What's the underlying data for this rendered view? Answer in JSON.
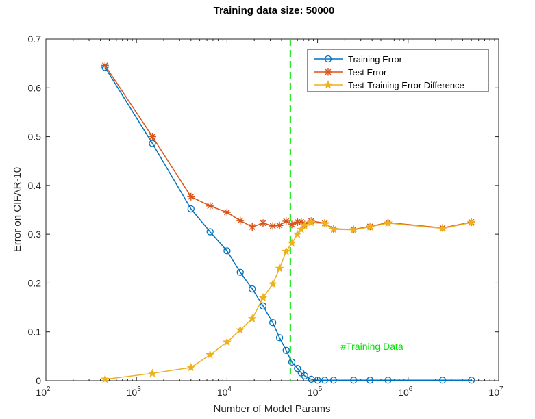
{
  "chart_data": {
    "type": "line",
    "title": "Training data size: 50000",
    "xlabel": "Number of Model Params",
    "ylabel": "Error on CIFAR-10",
    "xscale": "log",
    "xlim": [
      100,
      10000000
    ],
    "ylim": [
      0,
      0.7
    ],
    "x_ticks": [
      {
        "value": 100,
        "base": "10",
        "exp": "2"
      },
      {
        "value": 1000,
        "base": "10",
        "exp": "3"
      },
      {
        "value": 10000,
        "base": "10",
        "exp": "4"
      },
      {
        "value": 100000,
        "base": "10",
        "exp": "5"
      },
      {
        "value": 1000000,
        "base": "10",
        "exp": "6"
      },
      {
        "value": 10000000,
        "base": "10",
        "exp": "7"
      }
    ],
    "y_ticks": [
      {
        "value": 0,
        "label": "0"
      },
      {
        "value": 0.1,
        "label": "0.1"
      },
      {
        "value": 0.2,
        "label": "0.2"
      },
      {
        "value": 0.3,
        "label": "0.3"
      },
      {
        "value": 0.4,
        "label": "0.4"
      },
      {
        "value": 0.5,
        "label": "0.5"
      },
      {
        "value": 0.6,
        "label": "0.6"
      },
      {
        "value": 0.7,
        "label": "0.7"
      }
    ],
    "grid": false,
    "legend_position": "top-right",
    "series": [
      {
        "name": "Training Error",
        "color": "#0072BD",
        "marker": "circle",
        "points": [
          [
            450,
            0.642
          ],
          [
            1500,
            0.486
          ],
          [
            4000,
            0.352
          ],
          [
            6500,
            0.305
          ],
          [
            10000,
            0.266
          ],
          [
            14000,
            0.222
          ],
          [
            19000,
            0.188
          ],
          [
            25000,
            0.153
          ],
          [
            32000,
            0.119
          ],
          [
            38000,
            0.088
          ],
          [
            45000,
            0.062
          ],
          [
            52000,
            0.038
          ],
          [
            60000,
            0.025
          ],
          [
            66000,
            0.016
          ],
          [
            72000,
            0.01
          ],
          [
            85000,
            0.003
          ],
          [
            100000,
            0.001
          ],
          [
            120000,
            0.001
          ],
          [
            150000,
            0.001
          ],
          [
            250000,
            0.001
          ],
          [
            380000,
            0.001
          ],
          [
            600000,
            0.001
          ],
          [
            2400000,
            0.001
          ],
          [
            5000000,
            0.001
          ]
        ]
      },
      {
        "name": "Test Error",
        "color": "#D95319",
        "marker": "asterisk",
        "points": [
          [
            450,
            0.646
          ],
          [
            1500,
            0.5
          ],
          [
            4000,
            0.377
          ],
          [
            6500,
            0.358
          ],
          [
            10000,
            0.345
          ],
          [
            14000,
            0.328
          ],
          [
            19000,
            0.315
          ],
          [
            25000,
            0.323
          ],
          [
            32000,
            0.317
          ],
          [
            38000,
            0.318
          ],
          [
            45000,
            0.327
          ],
          [
            52000,
            0.32
          ],
          [
            60000,
            0.325
          ],
          [
            66000,
            0.325
          ],
          [
            72000,
            0.32
          ],
          [
            85000,
            0.327
          ],
          [
            120000,
            0.323
          ],
          [
            150000,
            0.311
          ],
          [
            250000,
            0.31
          ],
          [
            380000,
            0.316
          ],
          [
            600000,
            0.324
          ],
          [
            2400000,
            0.313
          ],
          [
            5000000,
            0.325
          ]
        ]
      },
      {
        "name": "Test-Training Error Difference",
        "color": "#EDB120",
        "marker": "star",
        "points": [
          [
            450,
            0.003
          ],
          [
            1500,
            0.015
          ],
          [
            4000,
            0.027
          ],
          [
            6500,
            0.053
          ],
          [
            10000,
            0.079
          ],
          [
            14000,
            0.104
          ],
          [
            19000,
            0.127
          ],
          [
            25000,
            0.17
          ],
          [
            32000,
            0.198
          ],
          [
            38000,
            0.23
          ],
          [
            45000,
            0.265
          ],
          [
            52000,
            0.282
          ],
          [
            60000,
            0.3
          ],
          [
            66000,
            0.31
          ],
          [
            72000,
            0.318
          ],
          [
            85000,
            0.324
          ],
          [
            120000,
            0.322
          ],
          [
            150000,
            0.31
          ],
          [
            250000,
            0.309
          ],
          [
            380000,
            0.315
          ],
          [
            600000,
            0.323
          ],
          [
            2400000,
            0.312
          ],
          [
            5000000,
            0.324
          ]
        ]
      }
    ],
    "reference_line": {
      "x": 50000,
      "color": "#00E400",
      "style": "dashed",
      "label": "#Training Data",
      "label_y": 0.07
    }
  }
}
